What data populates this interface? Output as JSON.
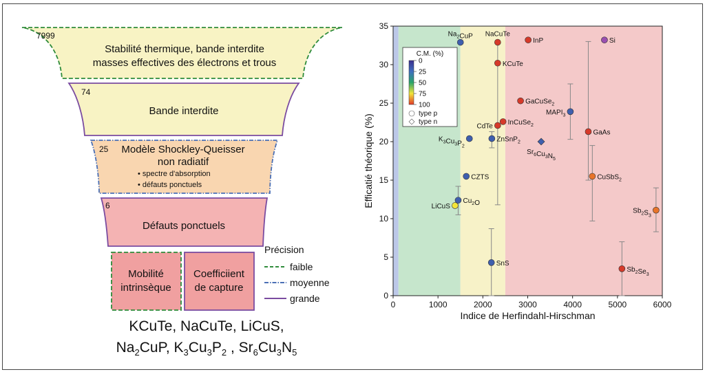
{
  "funnel": {
    "levels": [
      {
        "count": "7999",
        "lines": [
          "Stabilité thermique, bande interdite",
          "masses effectives des électrons et trous"
        ],
        "fill": "#f8f3c4",
        "stroke": "#2e8b3a",
        "precision": "faible"
      },
      {
        "count": "74",
        "lines": [
          "Bande interdite"
        ],
        "fill": "#f8f3c4",
        "stroke": "#7a4ba0",
        "precision": "grande"
      },
      {
        "count": "25",
        "lines": [
          "Modèle Shockley-Queisser",
          "non radiatif"
        ],
        "bullets": [
          "• spectre d'absorption",
          "• défauts ponctuels"
        ],
        "fill": "#f9d6b0",
        "stroke": "#4a6fb5",
        "precision": "moyenne"
      },
      {
        "count": "6",
        "lines": [
          "Défauts ponctuels"
        ],
        "fill": "#f4b3b3",
        "stroke": "#7a4ba0",
        "precision": "grande"
      }
    ],
    "bottom_boxes": [
      {
        "lines": [
          "Mobilité",
          "intrinsèque"
        ],
        "fill": "#f0a0a0",
        "stroke": "#2e8b3a"
      },
      {
        "lines": [
          "Coefficiient",
          "de capture"
        ],
        "fill": "#f0a0a0",
        "stroke": "#7a4ba0"
      }
    ]
  },
  "legend_precision": {
    "title": "Précision",
    "items": [
      {
        "label": "faible",
        "color": "#2e8b3a",
        "dash": "dashed"
      },
      {
        "label": "moyenne",
        "color": "#4a6fb5",
        "dash": "dashdot"
      },
      {
        "label": "grande",
        "color": "#7a4ba0",
        "dash": "solid"
      }
    ]
  },
  "materials_text": {
    "line1": "KCuTe, NaCuTe, LiCuS,",
    "line2": [
      {
        "t": "Na"
      },
      {
        "s": "2"
      },
      {
        "t": "CuP, K"
      },
      {
        "s": "3"
      },
      {
        "t": "Cu"
      },
      {
        "s": "3"
      },
      {
        "t": "P"
      },
      {
        "s": "2"
      },
      {
        "t": " , Sr"
      },
      {
        "s": "6"
      },
      {
        "t": "Cu"
      },
      {
        "s": "3"
      },
      {
        "t": "N"
      },
      {
        "s": "5"
      }
    ]
  },
  "chart_data": {
    "type": "scatter",
    "xlabel": "Indice de Herfindahl-Hirschman",
    "ylabel": "Efficatié théorique (%)",
    "xlim": [
      0,
      6000
    ],
    "ylim": [
      0,
      35
    ],
    "xticks": [
      0,
      1000,
      2000,
      3000,
      4000,
      5000,
      6000
    ],
    "yticks": [
      0,
      5,
      10,
      15,
      20,
      25,
      30,
      35
    ],
    "background_regions": [
      {
        "x0": 0,
        "x1": 120,
        "color": "#bcc8e8"
      },
      {
        "x0": 120,
        "x1": 1500,
        "color": "#c6e6cc"
      },
      {
        "x0": 1500,
        "x1": 2500,
        "color": "#f7f2c8"
      },
      {
        "x0": 2500,
        "x1": 6000,
        "color": "#f4c9c9"
      }
    ],
    "legend": {
      "title": "C.M. (%)",
      "ticks": [
        "0",
        "25",
        "50",
        "75",
        "100"
      ],
      "gradient": [
        "#3b2f8f",
        "#3f6fbf",
        "#2aa56a",
        "#f2e53a",
        "#e23a2a"
      ],
      "shapes": [
        "type p",
        "type n"
      ]
    },
    "points": [
      {
        "label": "Na2CuP",
        "x": 1500,
        "y": 32.9,
        "color": "#3f5fae",
        "shape": "circle",
        "label_pos": "above"
      },
      {
        "label": "NaCuTe",
        "x": 2330,
        "y": 32.9,
        "color": "#d63a2a",
        "shape": "circle",
        "label_pos": "above"
      },
      {
        "label": "InP",
        "x": 3010,
        "y": 33.2,
        "color": "#d63a2a",
        "shape": "circle",
        "label_pos": "right"
      },
      {
        "label": "Si",
        "x": 4710,
        "y": 33.2,
        "color": "#9a4fb0",
        "shape": "circle",
        "label_pos": "right"
      },
      {
        "label": "KCuTe",
        "x": 2330,
        "y": 30.2,
        "color": "#d63a2a",
        "shape": "circle",
        "label_pos": "right",
        "err": [
          11.8,
          33.0
        ]
      },
      {
        "label": "GaCuSe2",
        "x": 2840,
        "y": 25.3,
        "color": "#d63a2a",
        "shape": "circle",
        "label_pos": "right"
      },
      {
        "label": "MAPI3",
        "x": 3950,
        "y": 23.9,
        "color": "#3f5fae",
        "shape": "circle",
        "label_pos": "left",
        "err": [
          20.3,
          27.5
        ]
      },
      {
        "label": "InCuSe2",
        "x": 2450,
        "y": 22.6,
        "color": "#d63a2a",
        "shape": "circle",
        "label_pos": "right"
      },
      {
        "label": "CdTe",
        "x": 2330,
        "y": 22.1,
        "color": "#d63a2a",
        "shape": "circle",
        "label_pos": "left"
      },
      {
        "label": "GaAs",
        "x": 4350,
        "y": 21.3,
        "color": "#d63a2a",
        "shape": "circle",
        "label_pos": "right",
        "err": [
          15.0,
          33.0
        ]
      },
      {
        "label": "K3Cu3P2",
        "x": 1700,
        "y": 20.4,
        "color": "#3f5fae",
        "shape": "circle",
        "label_pos": "left"
      },
      {
        "label": "ZnSnP2",
        "x": 2200,
        "y": 20.4,
        "color": "#3f5fae",
        "shape": "circle",
        "label_pos": "right",
        "err": [
          19.2,
          21.3
        ]
      },
      {
        "label": "Sr6Cu3N5",
        "x": 3300,
        "y": 20.0,
        "color": "#3f5fae",
        "shape": "diamond",
        "label_pos": "below"
      },
      {
        "label": "CZTS",
        "x": 1630,
        "y": 15.5,
        "color": "#3f5fae",
        "shape": "circle",
        "label_pos": "right"
      },
      {
        "label": "CuSbS2",
        "x": 4440,
        "y": 15.5,
        "color": "#e8742a",
        "shape": "circle",
        "label_pos": "right",
        "err": [
          9.7,
          19.5
        ]
      },
      {
        "label": "Cu2O",
        "x": 1450,
        "y": 12.4,
        "color": "#3f5fae",
        "shape": "circle",
        "label_pos": "right",
        "err": [
          10.5,
          14.2
        ]
      },
      {
        "label": "LiCuS",
        "x": 1380,
        "y": 11.7,
        "color": "#f2e53a",
        "shape": "circle",
        "label_pos": "left"
      },
      {
        "label": "Sb2S3",
        "x": 5860,
        "y": 11.1,
        "color": "#e8742a",
        "shape": "circle",
        "label_pos": "left",
        "err": [
          8.3,
          14.0
        ]
      },
      {
        "label": "SnS",
        "x": 2190,
        "y": 4.3,
        "color": "#3f5fae",
        "shape": "circle",
        "label_pos": "right",
        "err": [
          0.0,
          8.7
        ]
      },
      {
        "label": "Sb2Se3",
        "x": 5100,
        "y": 3.5,
        "color": "#d63a2a",
        "shape": "circle",
        "label_pos": "right",
        "err": [
          0.0,
          7.0
        ]
      }
    ]
  }
}
